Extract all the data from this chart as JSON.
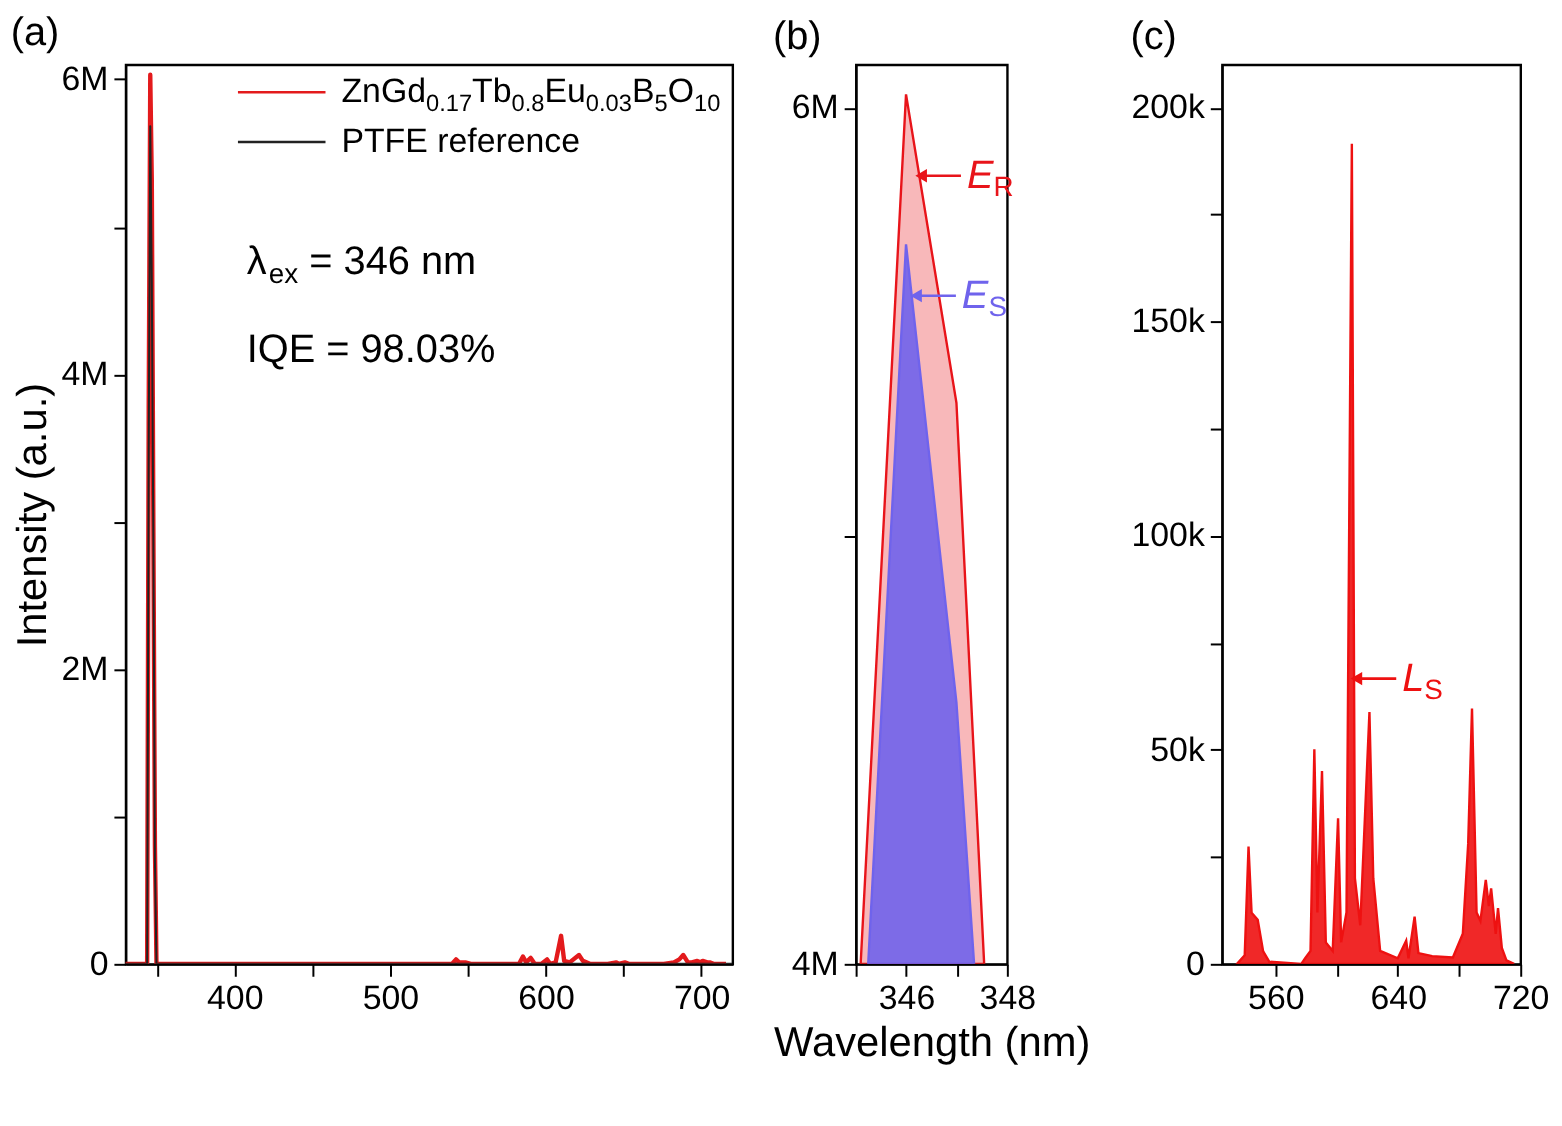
{
  "chart_data": [
    {
      "type": "line",
      "title": "(a)",
      "ylabel": "Intensity (a.u.)",
      "xlim": [
        330,
        720
      ],
      "ylim": [
        0,
        6100000
      ],
      "grid": false,
      "legend": "top right",
      "xticks": [
        {
          "value": 350,
          "label": null
        },
        400,
        {
          "value": 450,
          "label": null
        },
        500,
        {
          "value": 550,
          "label": null
        },
        600,
        {
          "value": 650,
          "label": null
        },
        700
      ],
      "yticks": [
        0,
        {
          "value": 1000000,
          "label": null
        },
        {
          "value": 2000000,
          "label": "2M"
        },
        {
          "value": 3000000,
          "label": null
        },
        {
          "value": 4000000,
          "label": "4M"
        },
        {
          "value": 5000000,
          "label": null
        },
        {
          "value": 6000000,
          "label": "6M"
        }
      ],
      "annotations": [
        "λ$_{ex}$ = 346 nm",
        "IQE = 98.03%"
      ],
      "series": [
        {
          "name": "ZnGd$_{0.17}$Tb$_{0.8}$Eu$_{0.03}$B$_{5}$O$_{10}$",
          "color": "#e31a1c",
          "x": [
            330,
            344,
            345,
            346,
            347,
            348,
            349,
            350,
            535,
            540,
            542.5,
            544.5,
            548.5,
            552,
            556,
            577,
            579.5,
            583,
            585.5,
            587.5,
            590.5,
            593,
            597.5,
            601,
            603,
            606.5,
            610,
            612,
            615.5,
            621.5,
            624,
            628.5,
            640,
            645.5,
            647,
            651,
            653.5,
            662.5,
            676,
            682.5,
            686,
            688.5,
            691.5,
            694,
            697.5,
            699.5,
            701,
            704,
            705.5,
            708,
            711,
            716
          ],
          "values": [
            0,
            0,
            3770000,
            6030000,
            5310000,
            2970000,
            800000,
            0,
            0,
            0,
            30000,
            10000,
            10000,
            0,
            0,
            0,
            0,
            0,
            50000,
            10000,
            40000,
            0,
            0,
            30000,
            0,
            10000,
            190000,
            20000,
            10000,
            60000,
            20000,
            0,
            0,
            10000,
            0,
            10000,
            0,
            0,
            0,
            10000,
            30000,
            60000,
            10000,
            10000,
            20000,
            10000,
            20000,
            10000,
            10000,
            0,
            0,
            0
          ]
        },
        {
          "name": "PTFE reference",
          "color": "#222222",
          "x": [
            330,
            344,
            345,
            346,
            347,
            348,
            349,
            350,
            720
          ],
          "values": [
            0,
            0,
            3470000,
            5680000,
            4610000,
            2870000,
            700000,
            0,
            0
          ]
        }
      ]
    },
    {
      "type": "area",
      "title": "(b)",
      "xlabel": "Wavelength (nm)",
      "xlim": [
        345,
        348
      ],
      "ylim": [
        4000000,
        6100000
      ],
      "grid": false,
      "xticks": [
        {
          "value": 345,
          "label": null
        },
        346,
        {
          "value": 347,
          "label": null
        },
        348
      ],
      "yticks": [
        {
          "value": 4000000,
          "label": "4M"
        },
        {
          "value": 5000000,
          "label": null
        },
        {
          "value": 6000000,
          "label": "6M"
        }
      ],
      "annotations": [
        {
          "text": "E$_{R}$",
          "x": 346.3,
          "y": 5840000
        },
        {
          "text": "E$_{S}$",
          "x": 346.2,
          "y": 5560000
        }
      ],
      "series": [
        {
          "color": "#e8141a",
          "x": [
            345.1,
            346,
            347,
            347.55
          ],
          "values": [
            4000000,
            6030000,
            5310000,
            4000000
          ]
        },
        {
          "color": "#6f63ec",
          "x": [
            345.25,
            346,
            347,
            347.35
          ],
          "values": [
            4000000,
            5680000,
            4610000,
            4000000
          ]
        }
      ]
    },
    {
      "type": "area",
      "title": "(c)",
      "xlim": [
        525,
        720
      ],
      "ylim": [
        0,
        210000
      ],
      "grid": false,
      "xticks": [
        560,
        {
          "value": 600,
          "label": null
        },
        640,
        {
          "value": 680,
          "label": null
        },
        720
      ],
      "yticks": [
        0,
        {
          "value": 25000,
          "label": null
        },
        {
          "value": 50000,
          "label": "50k"
        },
        {
          "value": 75000,
          "label": null
        },
        {
          "value": 100000,
          "label": "100k"
        },
        {
          "value": 125000,
          "label": null
        },
        {
          "value": 150000,
          "label": "150k"
        },
        {
          "value": 175000,
          "label": null
        },
        {
          "value": 200000,
          "label": "200k"
        }
      ],
      "annotations": [
        {
          "text": "L$_{S}$",
          "x": 613,
          "y": 66600
        }
      ],
      "series": [
        {
          "color": "#ee1111",
          "x": [
            535,
            540,
            542.5,
            544.5,
            548.5,
            552,
            556,
            577,
            579.5,
            583,
            585.5,
            587.5,
            590.5,
            593,
            597.5,
            601,
            603,
            606.5,
            610,
            612,
            615.5,
            621.5,
            624,
            628.5,
            640,
            645.5,
            647,
            651,
            653.5,
            662.5,
            676,
            682.5,
            686,
            688.5,
            691.5,
            694,
            697.5,
            699.5,
            701,
            704,
            705.5,
            708,
            711,
            716
          ],
          "values": [
            0,
            2000,
            27400,
            11900,
            10300,
            3000,
            500,
            0,
            1300,
            3000,
            50100,
            12000,
            45000,
            5000,
            3000,
            34000,
            5000,
            12000,
            191500,
            20000,
            9000,
            58800,
            20000,
            3000,
            1300,
            5400,
            1300,
            11000,
            2500,
            1800,
            1500,
            7000,
            28000,
            59600,
            12000,
            10000,
            19600,
            13500,
            17600,
            7000,
            13000,
            3700,
            800,
            0
          ]
        }
      ]
    }
  ]
}
